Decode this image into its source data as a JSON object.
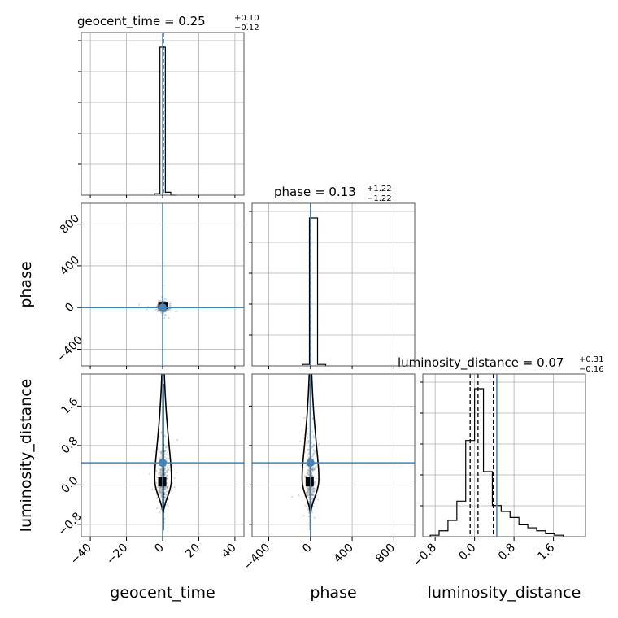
{
  "chart_data": {
    "type": "corner",
    "colors": {
      "truth": "#4682b4",
      "hist": "#000000",
      "grid": "#b0b0b0",
      "points": "#808080"
    },
    "parameters": [
      "geocent_time",
      "phase",
      "luminosity_distance"
    ],
    "titles": [
      {
        "name": "geocent_time",
        "median": "0.25",
        "plus": "+0.10",
        "minus": "−0.12"
      },
      {
        "name": "phase",
        "median": "0.13",
        "plus": "+1.22",
        "minus": "−1.22"
      },
      {
        "name": "luminosity_distance",
        "median": "0.07",
        "plus": "+0.31",
        "minus": "−0.16"
      }
    ],
    "axes": {
      "geocent_time": {
        "lim": [
          -45,
          45
        ],
        "ticks": [
          -40,
          -20,
          0,
          20,
          40
        ],
        "tick_labels": [
          "−40",
          "−20",
          "0",
          "20",
          "40"
        ]
      },
      "phase": {
        "lim": [
          -560,
          1000
        ],
        "ticks": [
          -400,
          0,
          400,
          800
        ],
        "tick_labels": [
          "−400",
          "0",
          "400",
          "800"
        ]
      },
      "luminosity_distance": {
        "lim": [
          -1.05,
          2.25
        ],
        "ticks": [
          -0.8,
          0.0,
          0.8,
          1.6
        ],
        "tick_labels": [
          "−0.8",
          "0.0",
          "0.8",
          "1.6"
        ]
      }
    },
    "xlabels": [
      "geocent_time",
      "phase",
      "luminosity_distance"
    ],
    "ylabels": [
      "",
      "phase",
      "luminosity_distance"
    ],
    "truths": {
      "geocent_time": 0.0,
      "phase": 0.0,
      "luminosity_distance": 0.45
    },
    "quantile_lines": {
      "geocent_time": [
        0.13,
        0.25,
        0.35
      ],
      "phase": [
        -1.09,
        0.13,
        1.35
      ],
      "luminosity_distance": [
        -0.09,
        0.07,
        0.38
      ]
    },
    "histograms": {
      "geocent_time": {
        "edges": [
          -4.5,
          -1.5,
          1.5,
          4.5,
          7.5
        ],
        "counts": [
          0.01,
          1.0,
          0.02,
          0.0
        ]
      },
      "phase": {
        "edges": [
          -78,
          -10,
          68,
          146
        ],
        "counts": [
          0.01,
          1.0,
          0.01
        ]
      },
      "luminosity_distance": {
        "edges": [
          -0.9,
          -0.72,
          -0.54,
          -0.36,
          -0.18,
          0.0,
          0.18,
          0.36,
          0.54,
          0.72,
          0.9,
          1.08,
          1.26,
          1.44,
          1.62,
          1.8
        ],
        "counts": [
          0.01,
          0.04,
          0.11,
          0.24,
          0.65,
          1.0,
          0.44,
          0.21,
          0.17,
          0.13,
          0.08,
          0.06,
          0.04,
          0.02,
          0.01
        ]
      }
    }
  }
}
